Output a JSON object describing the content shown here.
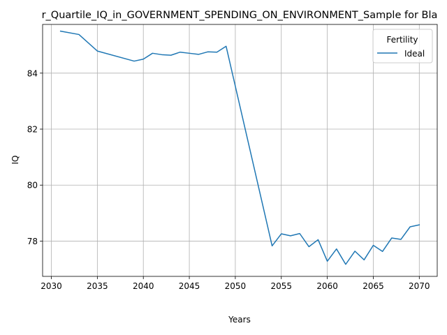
{
  "chart_data": {
    "type": "line",
    "title": "r_Quartile_IQ_in_GOVERNMENT_SPENDING_ON_ENVIRONMENT_Sample for Bla",
    "xlabel": "Years",
    "ylabel": "IQ",
    "xlim": [
      2029.05,
      2071.95
    ],
    "ylim": [
      76.74,
      85.74
    ],
    "xticks": [
      2030,
      2035,
      2040,
      2045,
      2050,
      2055,
      2060,
      2065,
      2070
    ],
    "yticks": [
      78,
      80,
      82,
      84
    ],
    "grid": true,
    "legend": {
      "title": "Fertility",
      "position": "top-right"
    },
    "series": [
      {
        "name": "Ideal",
        "color": "#1f77b4",
        "x": [
          2031,
          2033,
          2035,
          2039,
          2040,
          2041,
          2042,
          2043,
          2044,
          2045,
          2046,
          2047,
          2048,
          2049,
          2054,
          2055,
          2056,
          2057,
          2058,
          2059,
          2060,
          2061,
          2062,
          2063,
          2064,
          2065,
          2066,
          2067,
          2068,
          2069,
          2070
        ],
        "y": [
          85.5,
          85.38,
          84.79,
          84.43,
          84.5,
          84.71,
          84.66,
          84.64,
          84.75,
          84.71,
          84.67,
          84.76,
          84.75,
          84.96,
          77.83,
          78.26,
          78.19,
          78.27,
          77.8,
          78.05,
          77.28,
          77.72,
          77.17,
          77.64,
          77.33,
          77.85,
          77.63,
          78.11,
          78.06,
          78.51,
          78.58
        ]
      }
    ]
  }
}
